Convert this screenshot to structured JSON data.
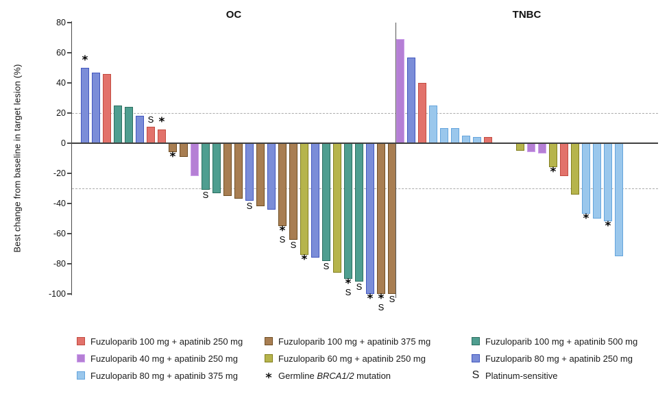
{
  "chart_data": {
    "type": "bar",
    "subtype": "waterfall",
    "title": "",
    "ylabel": "Best change from baseline in target lesion (%)",
    "ylim": [
      -100,
      80
    ],
    "yticks": [
      80,
      60,
      40,
      20,
      0,
      -20,
      -40,
      -60,
      -80,
      -100
    ],
    "reference_lines": [
      20,
      -30
    ],
    "grid": "dashed reference lines at +20 and -30 only",
    "legend_position": "bottom",
    "annotation_keys": {
      "*": "Germline BRCA1/2 mutation",
      "S": "Platinum-sensitive"
    },
    "series_colors": {
      "fz100_ap250": {
        "label": "Fuzuloparib 100 mg + apatinib 250 mg",
        "fill": "#E2726B",
        "edge": "#C24B40"
      },
      "fz40_ap250": {
        "label": "Fuzuloparib 40 mg + apatinib 250 mg",
        "fill": "#B57FD5",
        "edge": "#CDA0EC"
      },
      "fz80_ap375": {
        "label": "Fuzuloparib 80 mg + apatinib 375 mg",
        "fill": "#9AC7EC",
        "edge": "#64A4DC"
      },
      "fz100_ap375": {
        "label": "Fuzuloparib 100 mg + apatinib 375 mg",
        "fill": "#A87E52",
        "edge": "#6F4E24"
      },
      "fz60_ap250": {
        "label": "Fuzuloparib 60 mg + apatinib 250 mg",
        "fill": "#B6B44C",
        "edge": "#827F1F"
      },
      "fz100_ap500": {
        "label": "Fuzuloparib 100 mg + apatinib 500 mg",
        "fill": "#4F9E90",
        "edge": "#2C6E5F"
      },
      "fz80_ap250": {
        "label": "Fuzuloparib 80 mg + apatinib 250 mg",
        "fill": "#7B8DD8",
        "edge": "#4156BE"
      }
    },
    "groups": [
      {
        "name": "OC",
        "segments": [
          [
            {
              "v": 50,
              "s": "fz80_ap250",
              "a": [
                "*"
              ]
            },
            {
              "v": 47,
              "s": "fz80_ap250"
            },
            {
              "v": 46,
              "s": "fz100_ap250"
            },
            {
              "v": 25,
              "s": "fz100_ap500"
            },
            {
              "v": 24,
              "s": "fz100_ap500"
            },
            {
              "v": 18,
              "s": "fz80_ap250"
            },
            {
              "v": 11,
              "s": "fz100_ap250",
              "a": [
                "S"
              ]
            },
            {
              "v": 9,
              "s": "fz100_ap250",
              "a": [
                "*"
              ]
            },
            {
              "v": -6,
              "s": "fz100_ap375",
              "a": [
                "*"
              ]
            },
            {
              "v": -9,
              "s": "fz100_ap375"
            },
            {
              "v": -22,
              "s": "fz40_ap250"
            },
            {
              "v": -31,
              "s": "fz100_ap500",
              "a": [
                "S"
              ]
            },
            {
              "v": -33,
              "s": "fz100_ap500"
            },
            {
              "v": -35,
              "s": "fz100_ap375"
            },
            {
              "v": -37,
              "s": "fz100_ap375"
            },
            {
              "v": -38,
              "s": "fz80_ap250",
              "a": [
                "S"
              ]
            },
            {
              "v": -42,
              "s": "fz100_ap375"
            },
            {
              "v": -44,
              "s": "fz80_ap250"
            },
            {
              "v": -55,
              "s": "fz100_ap375",
              "a": [
                "*",
                "S"
              ]
            },
            {
              "v": -64,
              "s": "fz100_ap375",
              "a": [
                "S"
              ]
            },
            {
              "v": -74,
              "s": "fz60_ap250",
              "a": [
                "*"
              ]
            },
            {
              "v": -76,
              "s": "fz80_ap250"
            },
            {
              "v": -78,
              "s": "fz100_ap500",
              "a": [
                "S"
              ]
            },
            {
              "v": -86,
              "s": "fz60_ap250"
            },
            {
              "v": -90,
              "s": "fz100_ap500",
              "a": [
                "*",
                "S"
              ]
            },
            {
              "v": -92,
              "s": "fz100_ap500",
              "a": [
                "S"
              ]
            },
            {
              "v": -100,
              "s": "fz80_ap250",
              "a": [
                "*"
              ]
            },
            {
              "v": -100,
              "s": "fz100_ap375",
              "a": [
                "*",
                "S"
              ]
            },
            {
              "v": -100,
              "s": "fz100_ap375",
              "a": [
                "S"
              ]
            }
          ]
        ]
      },
      {
        "name": "TNBC",
        "segments": [
          [
            {
              "v": 69,
              "s": "fz40_ap250"
            },
            {
              "v": 57,
              "s": "fz80_ap250"
            },
            {
              "v": 40,
              "s": "fz100_ap250"
            },
            {
              "v": 25,
              "s": "fz80_ap375"
            },
            {
              "v": 10,
              "s": "fz80_ap375"
            },
            {
              "v": 10,
              "s": "fz80_ap375"
            },
            {
              "v": 5,
              "s": "fz80_ap375"
            },
            {
              "v": 4,
              "s": "fz80_ap375"
            },
            {
              "v": 4,
              "s": "fz100_ap250"
            }
          ],
          [
            {
              "v": -5,
              "s": "fz60_ap250"
            },
            {
              "v": -6,
              "s": "fz40_ap250"
            },
            {
              "v": -7,
              "s": "fz40_ap250"
            },
            {
              "v": -16,
              "s": "fz60_ap250",
              "a": [
                "*"
              ]
            },
            {
              "v": -22,
              "s": "fz100_ap250"
            },
            {
              "v": -34,
              "s": "fz60_ap250"
            },
            {
              "v": -47,
              "s": "fz80_ap375",
              "a": [
                "*"
              ]
            },
            {
              "v": -50,
              "s": "fz80_ap375"
            },
            {
              "v": -52,
              "s": "fz80_ap375",
              "a": [
                "*"
              ]
            },
            {
              "v": -75,
              "s": "fz80_ap375"
            }
          ]
        ]
      }
    ],
    "legend": {
      "columns": [
        {
          "items": [
            {
              "series": "fz100_ap250"
            },
            {
              "series": "fz40_ap250"
            },
            {
              "series": "fz80_ap375"
            }
          ]
        },
        {
          "items": [
            {
              "series": "fz100_ap375"
            },
            {
              "series": "fz60_ap250"
            },
            {
              "symbol": "*",
              "label_prefix": "Germline ",
              "label_italic": "BRCA1/2",
              "label_suffix": " mutation"
            }
          ]
        },
        {
          "items": [
            {
              "series": "fz100_ap500"
            },
            {
              "series": "fz80_ap250"
            },
            {
              "symbol": "S",
              "label": "Platinum-sensitive"
            }
          ]
        }
      ]
    }
  }
}
